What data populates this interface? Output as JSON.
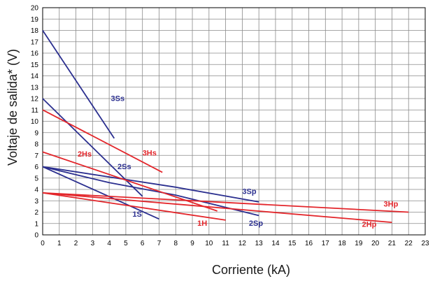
{
  "chart_data": {
    "type": "line",
    "title": "",
    "xlabel": "Corriente (kA)",
    "ylabel": "Voltaje de salida* (V)",
    "xlim": [
      0,
      23
    ],
    "ylim": [
      0,
      20
    ],
    "xticks": [
      0,
      1,
      2,
      3,
      4,
      5,
      6,
      7,
      8,
      9,
      10,
      11,
      12,
      13,
      14,
      15,
      16,
      17,
      18,
      19,
      20,
      21,
      22,
      23
    ],
    "yticks": [
      0,
      1,
      2,
      3,
      4,
      5,
      6,
      7,
      8,
      9,
      10,
      11,
      12,
      13,
      14,
      15,
      16,
      17,
      18,
      19,
      20
    ],
    "grid": true,
    "colors": {
      "blue": "#2b2f8f",
      "red": "#e3262b"
    },
    "series": [
      {
        "name": "1S",
        "color": "blue",
        "points": [
          [
            0,
            6.0
          ],
          [
            7.0,
            1.4
          ]
        ]
      },
      {
        "name": "2Ss",
        "color": "blue",
        "points": [
          [
            0,
            12.0
          ],
          [
            6.0,
            3.4
          ]
        ]
      },
      {
        "name": "3Ss",
        "color": "blue",
        "points": [
          [
            0,
            18.0
          ],
          [
            4.3,
            8.5
          ]
        ]
      },
      {
        "name": "2Sp",
        "color": "blue",
        "points": [
          [
            0,
            6.0
          ],
          [
            4.0,
            4.6
          ],
          [
            8.0,
            3.5
          ],
          [
            13.0,
            1.7
          ]
        ]
      },
      {
        "name": "3Sp",
        "color": "blue",
        "points": [
          [
            0,
            6.0
          ],
          [
            8.0,
            4.2
          ],
          [
            13.0,
            2.9
          ]
        ]
      },
      {
        "name": "1H",
        "color": "red",
        "points": [
          [
            0,
            3.7
          ],
          [
            11.0,
            1.3
          ]
        ]
      },
      {
        "name": "2Hs",
        "color": "red",
        "points": [
          [
            0,
            7.3
          ],
          [
            10.5,
            2.1
          ]
        ]
      },
      {
        "name": "3Hs",
        "color": "red",
        "points": [
          [
            0,
            11.0
          ],
          [
            7.2,
            5.5
          ]
        ]
      },
      {
        "name": "2Hp",
        "color": "red",
        "points": [
          [
            0,
            3.7
          ],
          [
            21.0,
            1.1
          ]
        ]
      },
      {
        "name": "3Hp",
        "color": "red",
        "points": [
          [
            0,
            3.7
          ],
          [
            22.0,
            2.0
          ]
        ]
      }
    ],
    "labels": [
      {
        "text": "3Ss",
        "series": "3Ss",
        "x": 4.1,
        "y": 11.8
      },
      {
        "text": "3Hs",
        "series": "3Hs",
        "x": 6.0,
        "y": 7.0
      },
      {
        "text": "2Hs",
        "series": "2Hs",
        "x": 2.1,
        "y": 6.9
      },
      {
        "text": "2Ss",
        "series": "2Ss",
        "x": 4.5,
        "y": 5.8
      },
      {
        "text": "3Sp",
        "series": "3Sp",
        "x": 12.0,
        "y": 3.6
      },
      {
        "text": "3Hp",
        "series": "3Hp",
        "x": 20.5,
        "y": 2.5
      },
      {
        "text": "1S",
        "series": "1S",
        "x": 5.4,
        "y": 1.6
      },
      {
        "text": "1H",
        "series": "1H",
        "x": 9.3,
        "y": 0.8
      },
      {
        "text": "2Sp",
        "series": "2Sp",
        "x": 12.4,
        "y": 0.8
      },
      {
        "text": "2Hp",
        "series": "2Hp",
        "x": 19.2,
        "y": 0.7
      }
    ]
  }
}
